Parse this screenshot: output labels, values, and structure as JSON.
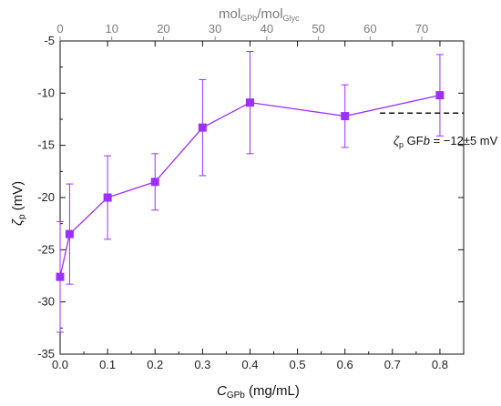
{
  "chart_data": {
    "type": "line",
    "title": "",
    "xlabel": {
      "main": "C",
      "sub": "GPb",
      "unit": " (mg/mL)"
    },
    "ylabel": {
      "main": "ζ",
      "sub": "p",
      "unit": " (mV)"
    },
    "x2label": {
      "num": "mol",
      "num_sub": "GPb",
      "den": "/mol",
      "den_sub": "Glyc"
    },
    "xlim": [
      0.0,
      0.85
    ],
    "ylim": [
      -35,
      -5
    ],
    "x2lim": [
      0,
      78.1
    ],
    "xticks": [
      "0.0",
      "0.1",
      "0.2",
      "0.3",
      "0.4",
      "0.5",
      "0.6",
      "0.7",
      "0.8"
    ],
    "yticks": [
      "-5",
      "-10",
      "-15",
      "-20",
      "-25",
      "-30",
      "-35"
    ],
    "x2ticks": [
      "0",
      "10",
      "20",
      "30",
      "40",
      "50",
      "60",
      "70"
    ],
    "grid": false,
    "series": [
      {
        "color": "#9b30ff",
        "x": [
          0.0,
          0.02,
          0.1,
          0.2,
          0.3,
          0.4,
          0.6,
          0.8
        ],
        "y": [
          -27.6,
          -23.5,
          -20.0,
          -18.5,
          -13.3,
          -10.9,
          -12.2,
          -10.2
        ],
        "err": [
          5.3,
          4.8,
          4.0,
          2.7,
          4.6,
          4.9,
          3.0,
          3.9
        ]
      }
    ],
    "reference": {
      "value": -12,
      "x_start": 0.62,
      "label_main": "ζ",
      "label_sub": "p",
      "label_rest": " GF",
      "label_italic": "b",
      "label_value": " = −12±5 mV"
    }
  }
}
